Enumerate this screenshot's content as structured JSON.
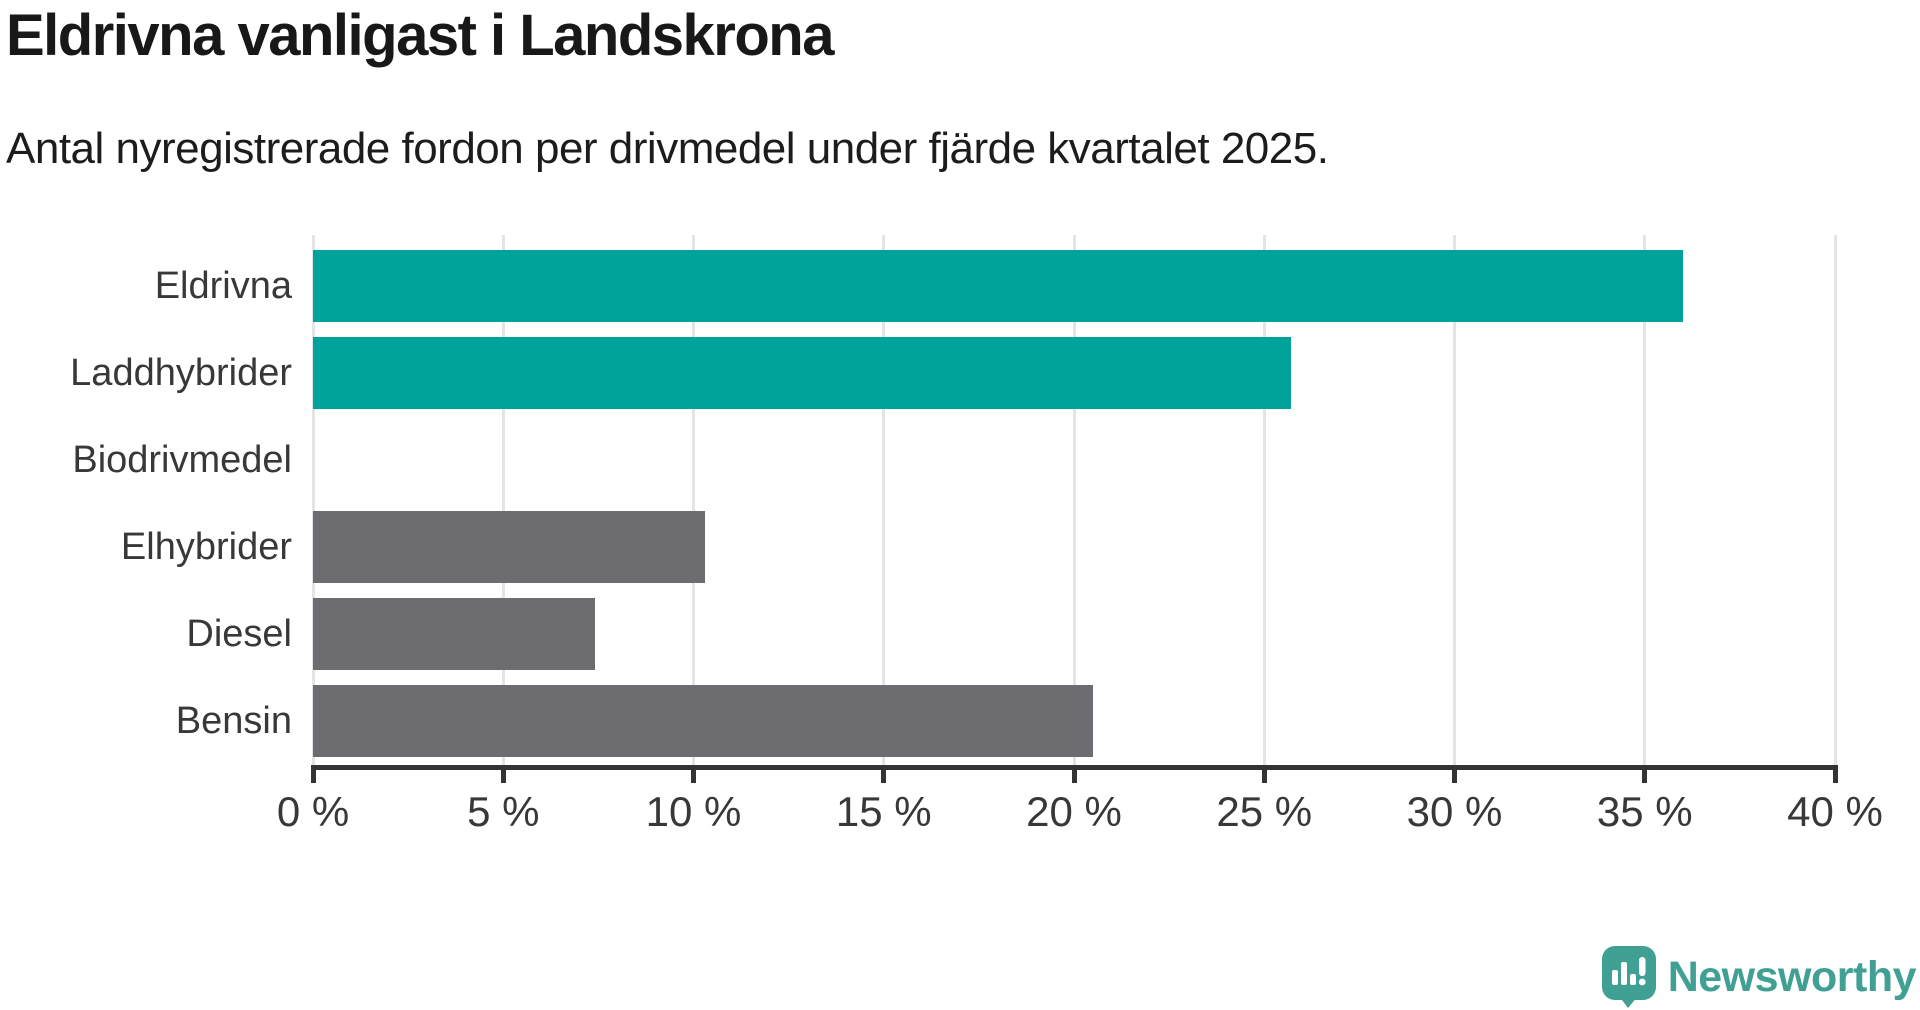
{
  "title": "Eldrivna vanligast i Landskrona",
  "subtitle": "Antal nyregistrerade fordon per drivmedel under fjärde kvartalet 2025.",
  "chart_data": {
    "type": "bar",
    "orientation": "horizontal",
    "categories": [
      "Eldrivna",
      "Laddhybrider",
      "Biodrivmedel",
      "Elhybrider",
      "Diesel",
      "Bensin"
    ],
    "values": [
      36.0,
      25.7,
      0,
      10.3,
      7.4,
      20.5
    ],
    "unit": "%",
    "xlim": [
      0,
      40
    ],
    "x_ticks": [
      0,
      5,
      10,
      15,
      20,
      25,
      30,
      35,
      40
    ],
    "x_tick_labels": [
      "0 %",
      "5 %",
      "10 %",
      "15 %",
      "20 %",
      "25 %",
      "30 %",
      "35 %",
      "40 %"
    ],
    "bar_colors": [
      "#00a39b",
      "#00a39b",
      "#6d6d71",
      "#6d6d71",
      "#6d6d71",
      "#6d6d71"
    ],
    "grid": true,
    "legend": "none",
    "colors": {
      "highlight": "#00a39b",
      "default": "#6d6d71",
      "gridline": "#e4e4e4",
      "axis": "#333333"
    }
  },
  "branding": {
    "logo_text": "Newsworthy",
    "logo_color": "#3fa093",
    "logo_icon": "speech-bubble-bar-chart-icon"
  }
}
